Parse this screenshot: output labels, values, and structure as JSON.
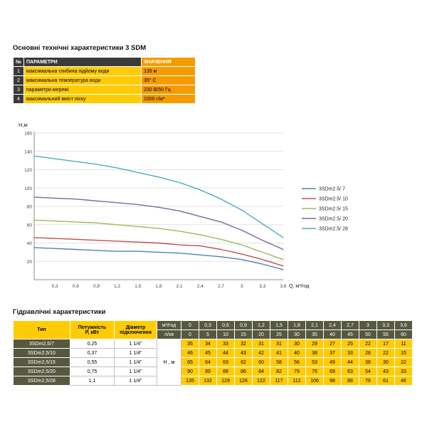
{
  "page": {
    "spec_title": "Основні технічні характеристики 3 SDM",
    "hydraulic_title": "Гідравлічні характеристики"
  },
  "spec_table": {
    "headers": {
      "num": "№",
      "param": "ПАРАМЕТРИ",
      "value": "ЗНАЧЕННЯ"
    },
    "rows": [
      {
        "num": "1",
        "param": "максимальна глибина підйому води",
        "value": "135 м"
      },
      {
        "num": "2",
        "param": "максимальна температура води",
        "value": "35° С"
      },
      {
        "num": "3",
        "param": "параметри мережі",
        "value": "230 В/50 Гц"
      },
      {
        "num": "4",
        "param": "максимальний вміст піску",
        "value": "1000 г/м³"
      }
    ]
  },
  "chart_data": {
    "type": "line",
    "title": "",
    "xlabel": "Q, м³/год",
    "ylabel": "Н,м",
    "x": [
      0,
      0.3,
      0.6,
      0.9,
      1.2,
      1.5,
      1.8,
      2.1,
      2.4,
      2.7,
      3,
      3.3,
      3.6
    ],
    "x_tick_labels": [
      "0,3",
      "0,6",
      "0,9",
      "1,2",
      "1,5",
      "1,8",
      "2,1",
      "2,4",
      "2,7",
      "3",
      "3,3",
      "3,6"
    ],
    "ylim": [
      0,
      160
    ],
    "y_ticks": [
      20,
      40,
      60,
      80,
      100,
      120,
      140,
      160
    ],
    "grid": "horizontal",
    "legend_position": "right",
    "series": [
      {
        "name": "3SDm2.5/ 7",
        "color": "#4F81BD",
        "values": [
          35,
          34,
          33,
          32,
          31,
          31,
          30,
          29,
          27,
          25,
          22,
          17,
          11
        ]
      },
      {
        "name": "3SDm2.5/ 10",
        "color": "#C0504D",
        "values": [
          46,
          45,
          44,
          43,
          42,
          41,
          40,
          38,
          37,
          33,
          28,
          22,
          15
        ]
      },
      {
        "name": "3SDm2.5/ 15",
        "color": "#9BBB59",
        "values": [
          65,
          64,
          63,
          62,
          60,
          58,
          56,
          53,
          49,
          44,
          38,
          30,
          22
        ]
      },
      {
        "name": "3SDm2.5/ 20",
        "color": "#8064A2",
        "values": [
          90,
          89,
          88,
          86,
          84,
          82,
          79,
          75,
          69,
          63,
          54,
          43,
          33
        ]
      },
      {
        "name": "3SDm2.5/ 28",
        "color": "#4BACC6",
        "values": [
          135,
          132,
          129,
          126,
          122,
          117,
          112,
          106,
          98,
          88,
          76,
          61,
          46
        ]
      }
    ]
  },
  "hydraulic_table": {
    "col_headers": {
      "type": "Тип",
      "power": "Потужність\nР, кВт",
      "diameter": "Діаметр\nпідключення"
    },
    "flow_header": {
      "m3h_label": "м³/год",
      "lmin_label": "л/хв",
      "m3h_values": [
        "0",
        "0,3",
        "0,6",
        "0,9",
        "1,2",
        "1,5",
        "1,8",
        "2,1",
        "2,4",
        "2,7",
        "3",
        "3,3",
        "3,6"
      ],
      "lmin_values": [
        "0",
        "5",
        "10",
        "15",
        "20",
        "25",
        "30",
        "35",
        "40",
        "45",
        "50",
        "55",
        "60"
      ]
    },
    "head_label": "Н , м",
    "rows": [
      {
        "type": "3SDm2,5/7",
        "power": "0,25",
        "diameter": "1 1/4\"",
        "values": [
          "35",
          "34",
          "33",
          "32",
          "31",
          "31",
          "30",
          "29",
          "27",
          "25",
          "22",
          "17",
          "11"
        ]
      },
      {
        "type": "3SDm2,5/10",
        "power": "0,37",
        "diameter": "1 1/4\"",
        "values": [
          "46",
          "45",
          "44",
          "43",
          "42",
          "41",
          "40",
          "38",
          "37",
          "33",
          "28",
          "22",
          "15"
        ]
      },
      {
        "type": "3SDm2,5/15",
        "power": "0,55",
        "diameter": "1 1/4\"",
        "values": [
          "65",
          "64",
          "63",
          "62",
          "60",
          "58",
          "56",
          "53",
          "49",
          "44",
          "38",
          "30",
          "22"
        ]
      },
      {
        "type": "3SDm2,5/20",
        "power": "0,75",
        "diameter": "1 1/4\"",
        "values": [
          "90",
          "89",
          "88",
          "86",
          "84",
          "82",
          "79",
          "75",
          "69",
          "63",
          "54",
          "43",
          "33"
        ]
      },
      {
        "type": "3SDm2,5/28",
        "power": "1,1",
        "diameter": "1 1/4\"",
        "values": [
          "135",
          "132",
          "129",
          "126",
          "122",
          "117",
          "112",
          "106",
          "98",
          "88",
          "76",
          "61",
          "46"
        ]
      }
    ]
  }
}
